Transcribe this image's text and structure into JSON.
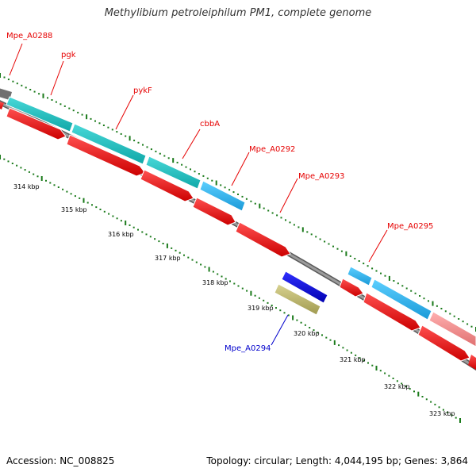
{
  "title": "Methylibium petroleiphilum PM1, complete genome",
  "footer": {
    "accession": "Accession: NC_008825",
    "summary": "Topology: circular; Length: 4,044,195 bp; Genes: 3,864"
  },
  "gene_labels": [
    {
      "name": "Mpe_A0288",
      "color": "#e60000"
    },
    {
      "name": "pgk",
      "color": "#e60000"
    },
    {
      "name": "pykF",
      "color": "#e60000"
    },
    {
      "name": "cbbA",
      "color": "#e60000"
    },
    {
      "name": "Mpe_A0292",
      "color": "#e60000"
    },
    {
      "name": "Mpe_A0293",
      "color": "#e60000"
    },
    {
      "name": "Mpe_A0295",
      "color": "#e60000"
    },
    {
      "name": "Mpe_A0294",
      "color": "#0000cc"
    }
  ],
  "scale_labels": [
    "314 kbp",
    "315 kbp",
    "316 kbp",
    "317 kbp",
    "318 kbp",
    "319 kbp",
    "320 kbp",
    "321 kbp",
    "322 kbp",
    "323 kbp"
  ],
  "colors": {
    "forward_cds": "#ff0000",
    "backbone": "#8a8a8a",
    "cyan_feature": "#20c0c0",
    "sky_feature": "#2bb8f0",
    "pink_feature": "#f08a8a",
    "blue_feature": "#0000ee",
    "khaki_feature": "#bdb76b",
    "tick_green": "#1a7a1a"
  }
}
